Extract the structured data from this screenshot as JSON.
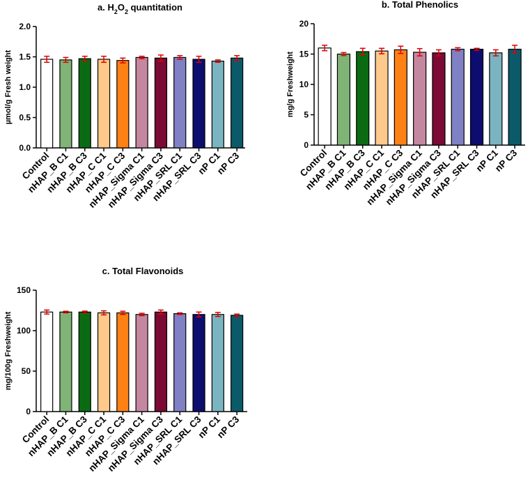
{
  "chart_data": [
    {
      "type": "bar",
      "title": "a. H2O2 quantitation",
      "title_parts": {
        "prefix": "a. H",
        "sub1": "2",
        "mid": "O",
        "sub2": "2",
        "suffix": " quantitation"
      },
      "xlabel": "",
      "ylabel": "µmol/g Fresh weight",
      "ylim": [
        0,
        2.0
      ],
      "yticks": [
        "0.0",
        "0.5",
        "1.0",
        "1.5",
        "2.0"
      ],
      "categories": [
        "Control",
        "nHAP_B C1",
        "nHAP_B C3",
        "nHAP_C C1",
        "nHAP_C C3",
        "nHAP_Sigma C1",
        "nHAP_Sigma C3",
        "nHAP_SRL C1",
        "nHAP_SRL C3",
        "nP C1",
        "nP C3"
      ],
      "values": [
        1.46,
        1.45,
        1.47,
        1.46,
        1.44,
        1.49,
        1.48,
        1.49,
        1.46,
        1.43,
        1.48
      ],
      "errors": [
        0.05,
        0.04,
        0.04,
        0.05,
        0.04,
        0.02,
        0.05,
        0.03,
        0.05,
        0.02,
        0.04
      ],
      "grid": false
    },
    {
      "type": "bar",
      "title": "b. Total Phenolics",
      "xlabel": "",
      "ylabel": "mg/g Freshweight",
      "ylim": [
        0,
        20
      ],
      "yticks": [
        "0",
        "5",
        "10",
        "15",
        "20"
      ],
      "categories": [
        "Control",
        "nHAP_B C1",
        "nHAP_B C3",
        "nHAP_C C1",
        "nHAP_C C3",
        "nHAP_Sigma C1",
        "nHAP_Sigma C3",
        "nHAP_SRL C1",
        "nHAP_SRL C3",
        "nP C1",
        "nP C3"
      ],
      "values": [
        16.0,
        15.0,
        15.4,
        15.5,
        15.7,
        15.3,
        15.2,
        15.8,
        15.8,
        15.2,
        15.8
      ],
      "errors": [
        0.45,
        0.25,
        0.55,
        0.45,
        0.6,
        0.6,
        0.5,
        0.25,
        0.15,
        0.5,
        0.65
      ],
      "grid": false
    },
    {
      "type": "bar",
      "title": "c. Total Flavonoids",
      "xlabel": "",
      "ylabel": "mg/100g Freshweight",
      "ylim": [
        0,
        150
      ],
      "yticks": [
        "0",
        "50",
        "100",
        "150"
      ],
      "categories": [
        "Control",
        "nHAP_B C1",
        "nHAP_B C3",
        "nHAP_C C1",
        "nHAP_C C3",
        "nHAP_Sigma C1",
        "nHAP_Sigma C3",
        "nHAP_SRL C1",
        "nHAP_SRL C3",
        "nP C1",
        "nP C3"
      ],
      "values": [
        123,
        123,
        123,
        122,
        122,
        120,
        123,
        121,
        120,
        120,
        119
      ],
      "errors": [
        2.5,
        1.0,
        1.2,
        2.5,
        2.0,
        1.5,
        2.5,
        1.0,
        3.0,
        2.5,
        1.5
      ],
      "grid": false
    }
  ],
  "colors": {
    "bars": [
      "#ffffff",
      "#80b477",
      "#0a6b12",
      "#fec98b",
      "#fd8114",
      "#c586a0",
      "#7b0a35",
      "#8080c4",
      "#0d0d70",
      "#7ab4c0",
      "#0a5a6a"
    ],
    "bar_stroke": "#000000",
    "error_bar": "#e00000",
    "axis": "#000000"
  }
}
